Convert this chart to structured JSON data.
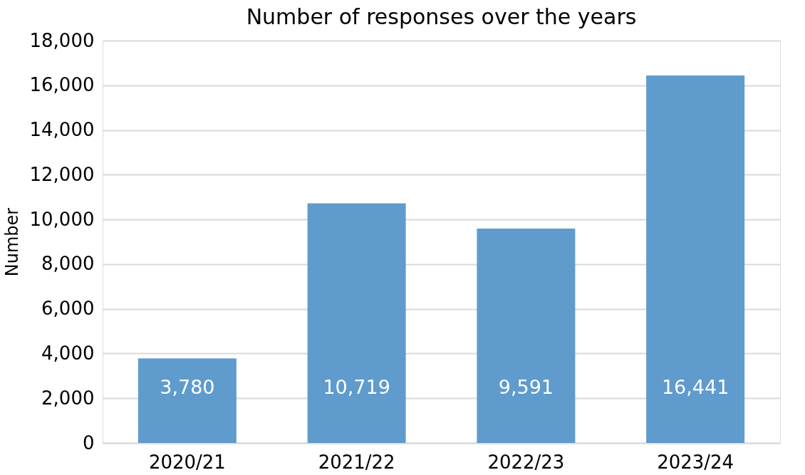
{
  "chart_data": {
    "type": "bar",
    "title": "Number of responses over the years",
    "ylabel": "Number",
    "categories": [
      "2020/21",
      "2021/22",
      "2022/23",
      "2023/24"
    ],
    "values": [
      3780,
      10719,
      9591,
      16441
    ],
    "color": "#5f9bcd",
    "value_labels": [
      "3,780",
      "10,719",
      "9,591",
      "16,441"
    ],
    "ylim": [
      0,
      18000
    ],
    "yticks": [
      0,
      {
        "value": 2000,
        "label": "2,000"
      },
      {
        "value": 4000,
        "label": "4,000"
      },
      {
        "value": 6000,
        "label": "6,000"
      },
      {
        "value": 8000,
        "label": "8,000"
      },
      {
        "value": 10000,
        "label": "10,000"
      },
      {
        "value": 12000,
        "label": "12,000"
      },
      {
        "value": 14000,
        "label": "14,000"
      },
      {
        "value": 16000,
        "label": "16,000"
      },
      {
        "value": 18000,
        "label": "18,000"
      }
    ],
    "grid": "y"
  }
}
